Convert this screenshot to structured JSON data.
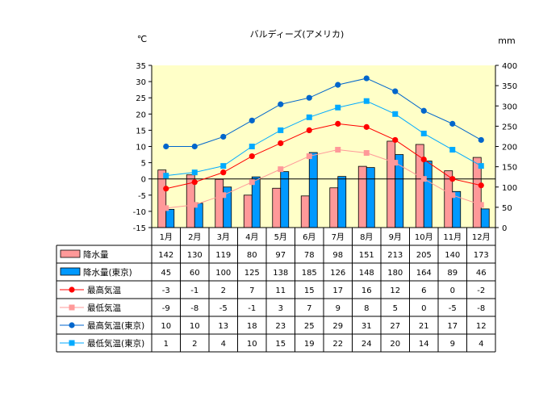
{
  "chart_data": {
    "type": "bar",
    "title": "バルディーズ(アメリカ)",
    "y_left_unit": "℃",
    "y_right_unit": "mm",
    "y_left_range": [
      -15,
      35
    ],
    "y_left_ticks": [
      "35",
      "30",
      "25",
      "20",
      "15",
      "10",
      "5",
      "0",
      "-5",
      "-10",
      "-15"
    ],
    "y_right_range": [
      0,
      400
    ],
    "y_right_ticks": [
      "400",
      "350",
      "300",
      "250",
      "200",
      "150",
      "100",
      "50",
      "0"
    ],
    "categories": [
      "1月",
      "2月",
      "3月",
      "4月",
      "5月",
      "6月",
      "7月",
      "8月",
      "9月",
      "10月",
      "11月",
      "12月"
    ],
    "grid": false,
    "plot_background": "#ffffc8",
    "series": [
      {
        "name": "降水量",
        "kind": "bar",
        "axis": "right",
        "color": "#ff9999",
        "values": [
          142,
          130,
          119,
          80,
          97,
          78,
          98,
          151,
          213,
          205,
          140,
          173
        ],
        "labels": [
          "142",
          "130",
          "119",
          "80",
          "97",
          "78",
          "98",
          "151",
          "213",
          "205",
          "140",
          "173"
        ]
      },
      {
        "name": "降水量(東京)",
        "kind": "bar",
        "axis": "right",
        "color": "#0099ff",
        "values": [
          45,
          60,
          100,
          125,
          138,
          185,
          126,
          148,
          180,
          164,
          89,
          46
        ],
        "labels": [
          "45",
          "60",
          "100",
          "125",
          "138",
          "185",
          "126",
          "148",
          "180",
          "164",
          "89",
          "46"
        ]
      },
      {
        "name": "最高気温",
        "kind": "line",
        "axis": "left",
        "color": "#ff0000",
        "marker": "circle",
        "values": [
          -3,
          -1,
          2,
          7,
          11,
          15,
          17,
          16,
          12,
          6,
          0,
          -2
        ],
        "labels": [
          "-3",
          "-1",
          "2",
          "7",
          "11",
          "15",
          "17",
          "16",
          "12",
          "6",
          "0",
          "-2"
        ]
      },
      {
        "name": "最低気温",
        "kind": "line",
        "axis": "left",
        "color": "#ff9999",
        "marker": "square",
        "values": [
          -9,
          -8,
          -5,
          -1,
          3,
          7,
          9,
          8,
          5,
          0,
          -5,
          -8
        ],
        "labels": [
          "-9",
          "-8",
          "-5",
          "-1",
          "3",
          "7",
          "9",
          "8",
          "5",
          "0",
          "-5",
          "-8"
        ]
      },
      {
        "name": "最高気温(東京)",
        "kind": "line",
        "axis": "left",
        "color": "#0066cc",
        "marker": "circle",
        "values": [
          10,
          10,
          13,
          18,
          23,
          25,
          29,
          31,
          27,
          21,
          17,
          12
        ],
        "labels": [
          "10",
          "10",
          "13",
          "18",
          "23",
          "25",
          "29",
          "31",
          "27",
          "21",
          "17",
          "12"
        ]
      },
      {
        "name": "最低気温(東京)",
        "kind": "line",
        "axis": "left",
        "color": "#00aaff",
        "marker": "square",
        "values": [
          1,
          2,
          4,
          10,
          15,
          19,
          22,
          24,
          20,
          14,
          9,
          4
        ],
        "labels": [
          "1",
          "2",
          "4",
          "10",
          "15",
          "19",
          "22",
          "24",
          "20",
          "14",
          "9",
          "4"
        ]
      }
    ]
  }
}
